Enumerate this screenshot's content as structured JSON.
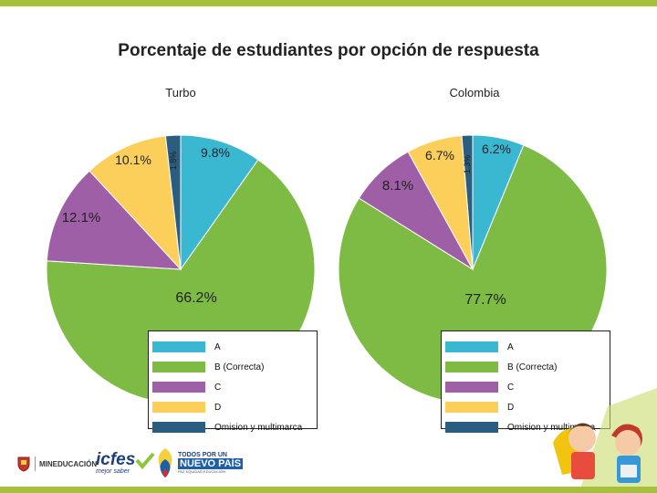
{
  "page": {
    "title": "Porcentaje de estudiantes por opción de respuesta",
    "colors": {
      "lime": "#a5c13a",
      "text": "#222222"
    }
  },
  "chart_data": [
    {
      "type": "pie",
      "title": "Turbo",
      "categories": [
        "A",
        "B (Correcta)",
        "C",
        "D",
        "Omision y multimarca"
      ],
      "values": [
        9.8,
        66.2,
        12.1,
        10.1,
        1.8
      ],
      "labels": [
        "9.8%",
        "66.2%",
        "12.1%",
        "10.1%",
        "1.8%"
      ],
      "colors": [
        "#3ab8d2",
        "#7dbb45",
        "#9f5fa6",
        "#fbcf5a",
        "#2b5d7f"
      ],
      "legend": "bottom-right"
    },
    {
      "type": "pie",
      "title": "Colombia",
      "categories": [
        "A",
        "B (Correcta)",
        "C",
        "D",
        "Omision y multimarca"
      ],
      "values": [
        6.2,
        77.7,
        8.1,
        6.7,
        1.3
      ],
      "labels": [
        "6.2%",
        "77.7%",
        "8.1%",
        "6.7%",
        "1.3%"
      ],
      "colors": [
        "#3ab8d2",
        "#7dbb45",
        "#9f5fa6",
        "#fbcf5a",
        "#2b5d7f"
      ],
      "legend": "bottom-right"
    }
  ],
  "footer": {
    "logo_mineducacion": "MINEDUCACIÓN",
    "logo_icfes": "icfes",
    "logo_icfes_sub": "mejor saber",
    "logo_todos_line1": "TODOS POR UN",
    "logo_todos_line2": "NUEVO PAÍS",
    "logo_todos_sub": "PAZ   EQUIDAD   EDUCACIÓN"
  }
}
